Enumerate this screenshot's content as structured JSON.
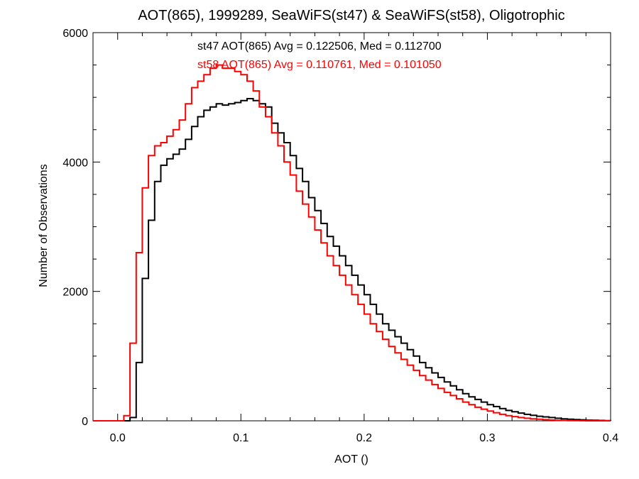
{
  "chart_data": {
    "type": "histogram",
    "title": "AOT(865), 1999289, SeaWiFS(st47) & SeaWiFS(st58), Oligotrophic",
    "xlabel": "AOT ()",
    "ylabel": "Number of Observations",
    "xlim": [
      -0.02,
      0.4
    ],
    "ylim": [
      0,
      6000
    ],
    "x_ticks": [
      0.0,
      0.1,
      0.2,
      0.3,
      0.4
    ],
    "x_tick_labels": [
      "0.0",
      "0.1",
      "0.2",
      "0.3",
      "0.4"
    ],
    "y_ticks": [
      0,
      2000,
      4000,
      6000
    ],
    "y_tick_labels": [
      "0",
      "2000",
      "4000",
      "6000"
    ],
    "grid": false,
    "series": [
      {
        "name": "st47",
        "color": "#000000",
        "stat_label": "st47 AOT(865) Avg = 0.122506, Med = 0.112700",
        "x": [
          0.0,
          0.005,
          0.01,
          0.015,
          0.02,
          0.025,
          0.03,
          0.035,
          0.04,
          0.045,
          0.05,
          0.055,
          0.06,
          0.065,
          0.07,
          0.075,
          0.08,
          0.085,
          0.09,
          0.095,
          0.1,
          0.105,
          0.11,
          0.115,
          0.12,
          0.125,
          0.13,
          0.135,
          0.14,
          0.145,
          0.15,
          0.155,
          0.16,
          0.165,
          0.17,
          0.175,
          0.18,
          0.185,
          0.19,
          0.195,
          0.2,
          0.205,
          0.21,
          0.215,
          0.22,
          0.225,
          0.23,
          0.235,
          0.24,
          0.245,
          0.25,
          0.255,
          0.26,
          0.265,
          0.27,
          0.275,
          0.28,
          0.285,
          0.29,
          0.295,
          0.3,
          0.305,
          0.31,
          0.315,
          0.32,
          0.325,
          0.33,
          0.335,
          0.34,
          0.345,
          0.35,
          0.355,
          0.36,
          0.365,
          0.37,
          0.375,
          0.38,
          0.385,
          0.39,
          0.395
        ],
        "y": [
          0,
          0,
          50,
          900,
          2200,
          3100,
          3700,
          3950,
          4050,
          4120,
          4200,
          4350,
          4550,
          4700,
          4800,
          4850,
          4900,
          4880,
          4900,
          4920,
          4950,
          4980,
          4950,
          4900,
          4850,
          4600,
          4450,
          4300,
          4100,
          3900,
          3700,
          3450,
          3250,
          3050,
          2850,
          2700,
          2550,
          2400,
          2250,
          2100,
          1950,
          1800,
          1650,
          1500,
          1400,
          1300,
          1200,
          1100,
          1000,
          900,
          820,
          740,
          670,
          600,
          540,
          480,
          420,
          370,
          330,
          290,
          250,
          220,
          190,
          160,
          140,
          120,
          100,
          85,
          70,
          60,
          50,
          40,
          30,
          25,
          20,
          15,
          10,
          8,
          5,
          3
        ]
      },
      {
        "name": "st58",
        "color": "#ff0000",
        "stat_label": "st58 AOT(865) Avg = 0.110761, Med = 0.101050",
        "x": [
          0.0,
          0.005,
          0.01,
          0.015,
          0.02,
          0.025,
          0.03,
          0.035,
          0.04,
          0.045,
          0.05,
          0.055,
          0.06,
          0.065,
          0.07,
          0.075,
          0.08,
          0.085,
          0.09,
          0.095,
          0.1,
          0.105,
          0.11,
          0.115,
          0.12,
          0.125,
          0.13,
          0.135,
          0.14,
          0.145,
          0.15,
          0.155,
          0.16,
          0.165,
          0.17,
          0.175,
          0.18,
          0.185,
          0.19,
          0.195,
          0.2,
          0.205,
          0.21,
          0.215,
          0.22,
          0.225,
          0.23,
          0.235,
          0.24,
          0.245,
          0.25,
          0.255,
          0.26,
          0.265,
          0.27,
          0.275,
          0.28,
          0.285,
          0.29,
          0.295,
          0.3,
          0.305,
          0.31,
          0.315,
          0.32,
          0.325,
          0.33,
          0.335,
          0.34,
          0.345,
          0.35,
          0.355,
          0.36,
          0.365,
          0.37,
          0.375,
          0.38,
          0.385,
          0.39,
          0.395
        ],
        "y": [
          0,
          80,
          1200,
          2600,
          3600,
          4100,
          4250,
          4300,
          4400,
          4500,
          4650,
          4900,
          5150,
          5250,
          5350,
          5450,
          5500,
          5450,
          5450,
          5400,
          5350,
          5250,
          5100,
          4850,
          4700,
          4450,
          4250,
          4000,
          3800,
          3550,
          3350,
          3150,
          2950,
          2750,
          2550,
          2400,
          2250,
          2100,
          1950,
          1800,
          1650,
          1500,
          1380,
          1260,
          1150,
          1050,
          950,
          860,
          780,
          700,
          630,
          560,
          500,
          440,
          390,
          340,
          290,
          250,
          210,
          180,
          150,
          125,
          100,
          80,
          65,
          50,
          40,
          30,
          25,
          18,
          12,
          8,
          5,
          3,
          2,
          1,
          0,
          0,
          0,
          0
        ]
      }
    ],
    "bin_width": 0.005
  }
}
